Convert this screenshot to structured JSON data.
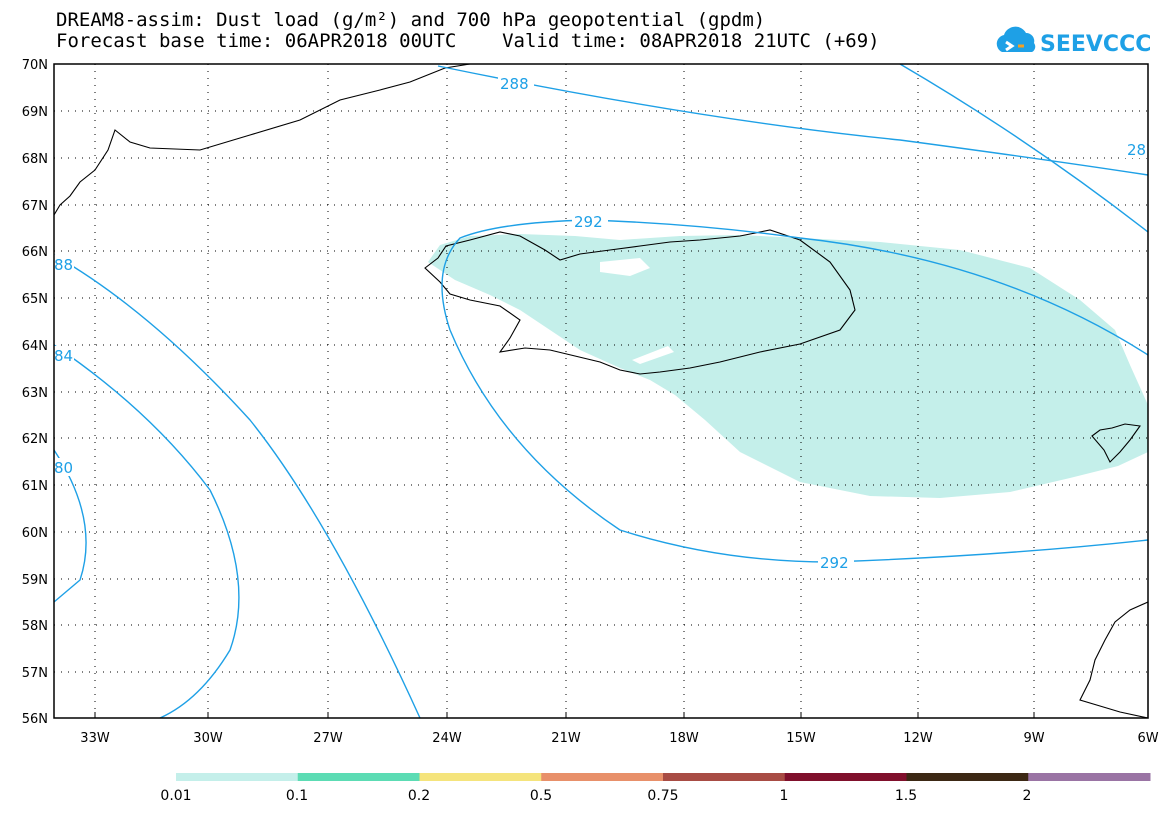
{
  "header": {
    "title_line1": "DREAM8-assim: Dust load (g/m²) and 700 hPa geopotential (gpdm)",
    "title_line2": "Forecast base time: 06APR2018 00UTC    Valid time: 08APR2018 21UTC (+69)"
  },
  "logo": {
    "text": "SEEVCCC",
    "icon": "cloud-icon",
    "color": "#1ea0e6"
  },
  "map": {
    "lat_labels": [
      "70N",
      "69N",
      "68N",
      "67N",
      "66N",
      "65N",
      "64N",
      "63N",
      "62N",
      "61N",
      "60N",
      "59N",
      "58N",
      "57N",
      "56N"
    ],
    "lon_labels": [
      "33W",
      "30W",
      "27W",
      "24W",
      "21W",
      "18W",
      "15W",
      "12W",
      "9W",
      "6W"
    ],
    "contour_labels": [
      "288",
      "28",
      "292",
      "292",
      "88",
      "84",
      "80"
    ],
    "contour_color": "#1ea0e6",
    "dust_fill_color": "#c4efea"
  },
  "legend": {
    "labels": [
      "0.01",
      "0.1",
      "0.2",
      "0.5",
      "0.75",
      "1",
      "1.5",
      "2"
    ],
    "colors": [
      "#c4efea",
      "#5cdcb4",
      "#f5e47c",
      "#e8906a",
      "#a84c44",
      "#80102c",
      "#3c2814",
      "#9a74a4"
    ]
  }
}
